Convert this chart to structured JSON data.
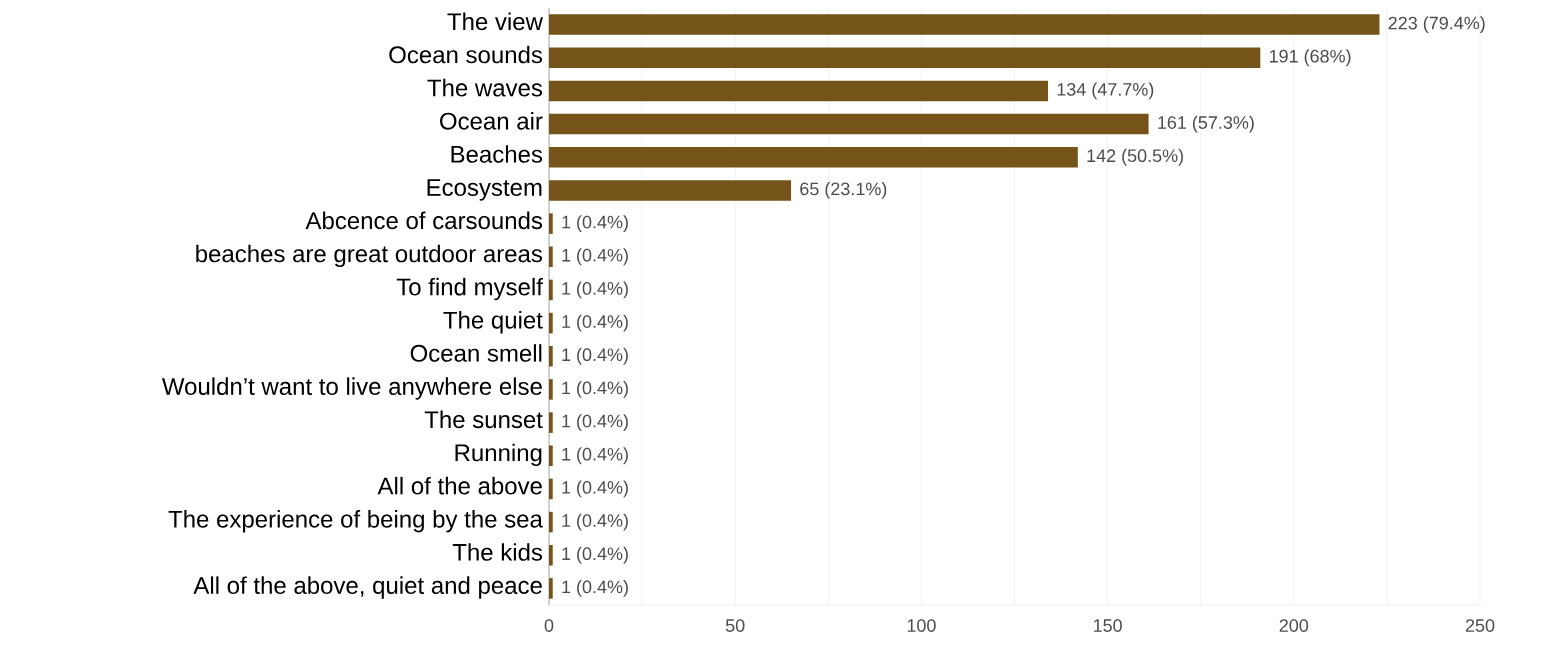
{
  "chart_data": {
    "type": "bar",
    "orientation": "horizontal",
    "color": "#745418",
    "categories": [
      "The view",
      "Ocean sounds",
      "The waves",
      "Ocean air",
      "Beaches",
      "Ecosystem",
      "Abcence of carsounds",
      "beaches are great outdoor areas",
      "To find myself",
      "The quiet",
      "Ocean smell",
      "Wouldn’t want  to live anywhere else",
      "The sunset",
      "Running",
      "All of the above",
      "The experience of being by the sea",
      "The kids",
      "All of the above, quiet and peace"
    ],
    "values": [
      223,
      191,
      134,
      161,
      142,
      65,
      1,
      1,
      1,
      1,
      1,
      1,
      1,
      1,
      1,
      1,
      1,
      1
    ],
    "value_labels": [
      "223 (79.4%)",
      "191 (68%)",
      "134 (47.7%)",
      "161 (57.3%)",
      "142 (50.5%)",
      "65 (23.1%)",
      "1 (0.4%)",
      "1 (0.4%)",
      "1 (0.4%)",
      "1 (0.4%)",
      "1 (0.4%)",
      "1 (0.4%)",
      "1 (0.4%)",
      "1 (0.4%)",
      "1 (0.4%)",
      "1 (0.4%)",
      "1 (0.4%)",
      "1 (0.4%)"
    ],
    "xlim": [
      0,
      250
    ],
    "xticks": [
      0,
      {
        "value": 25,
        "label": null
      },
      50,
      {
        "value": 75,
        "label": null
      },
      100,
      {
        "value": 125,
        "label": null
      },
      150,
      {
        "value": 175,
        "label": null
      },
      200,
      {
        "value": 225,
        "label": null
      },
      250
    ],
    "grid": "x"
  }
}
